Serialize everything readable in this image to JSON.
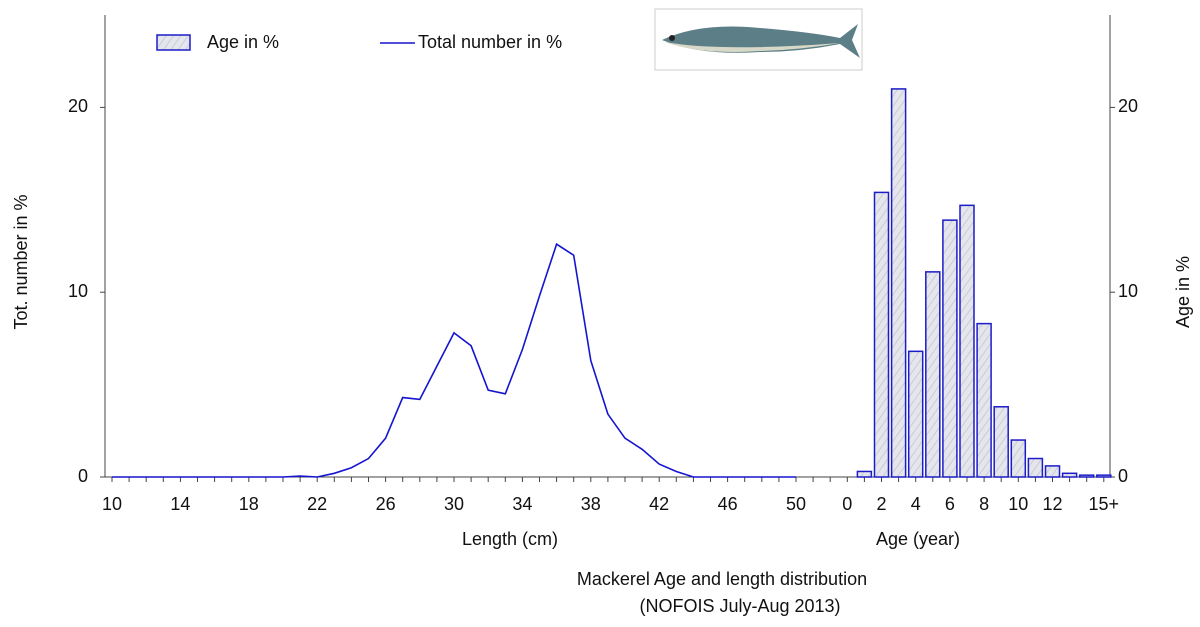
{
  "chart_data": {
    "type": "combo",
    "title": "Mackerel Age and length distribution",
    "subtitle": "(NOFOIS July-Aug 2013)",
    "x_labels": [
      "Length (cm)",
      "Age (year)"
    ],
    "ylabel": "Tot. number  in %",
    "y2label": "Age in %",
    "categories": [
      "10",
      null,
      null,
      null,
      "14",
      null,
      null,
      null,
      "18",
      null,
      null,
      null,
      "22",
      null,
      null,
      null,
      "26",
      null,
      null,
      null,
      "30",
      null,
      null,
      null,
      "34",
      null,
      null,
      null,
      "38",
      null,
      null,
      null,
      "42",
      null,
      null,
      null,
      "46",
      null,
      null,
      null,
      "50",
      null,
      null,
      "0",
      null,
      "2",
      null,
      "4",
      null,
      "6",
      null,
      "8",
      null,
      "10",
      null,
      "12",
      null,
      null,
      "15+"
    ],
    "series": [
      {
        "name": "Age in %",
        "type": "bar",
        "axis": "y2",
        "color": "#1c1cc8",
        "fill": "#dfe1e8",
        "values": [
          null,
          null,
          null,
          null,
          null,
          null,
          null,
          null,
          null,
          null,
          null,
          null,
          null,
          null,
          null,
          null,
          null,
          null,
          null,
          null,
          null,
          null,
          null,
          null,
          null,
          null,
          null,
          null,
          null,
          null,
          null,
          null,
          null,
          null,
          null,
          null,
          null,
          null,
          null,
          null,
          null,
          null,
          null,
          0,
          0.3,
          15.4,
          21.0,
          6.8,
          11.1,
          13.9,
          14.7,
          8.3,
          3.8,
          2.0,
          1.0,
          0.6,
          0.2,
          0.1,
          0.1
        ]
      },
      {
        "name": "Total number in %",
        "type": "line",
        "axis": "y",
        "color": "#1515d0",
        "values": [
          0,
          0,
          0,
          0,
          0,
          0,
          0,
          0,
          0,
          0,
          0,
          0.05,
          0,
          0.2,
          0.5,
          1.0,
          2.1,
          4.3,
          4.2,
          6.0,
          7.8,
          7.1,
          4.7,
          4.5,
          6.9,
          9.8,
          12.6,
          12.0,
          6.3,
          3.4,
          2.1,
          1.5,
          0.7,
          0.3,
          0,
          0,
          0,
          0,
          0,
          0,
          0,
          null,
          null,
          null,
          null,
          null,
          null,
          null,
          null,
          null,
          null,
          null,
          null,
          null,
          null,
          null,
          null,
          null,
          null
        ]
      }
    ],
    "ylim": [
      0,
      25
    ],
    "yticks": [
      0,
      10,
      20
    ],
    "y2lim": [
      0,
      25
    ],
    "y2ticks": [
      0,
      10,
      20
    ]
  }
}
